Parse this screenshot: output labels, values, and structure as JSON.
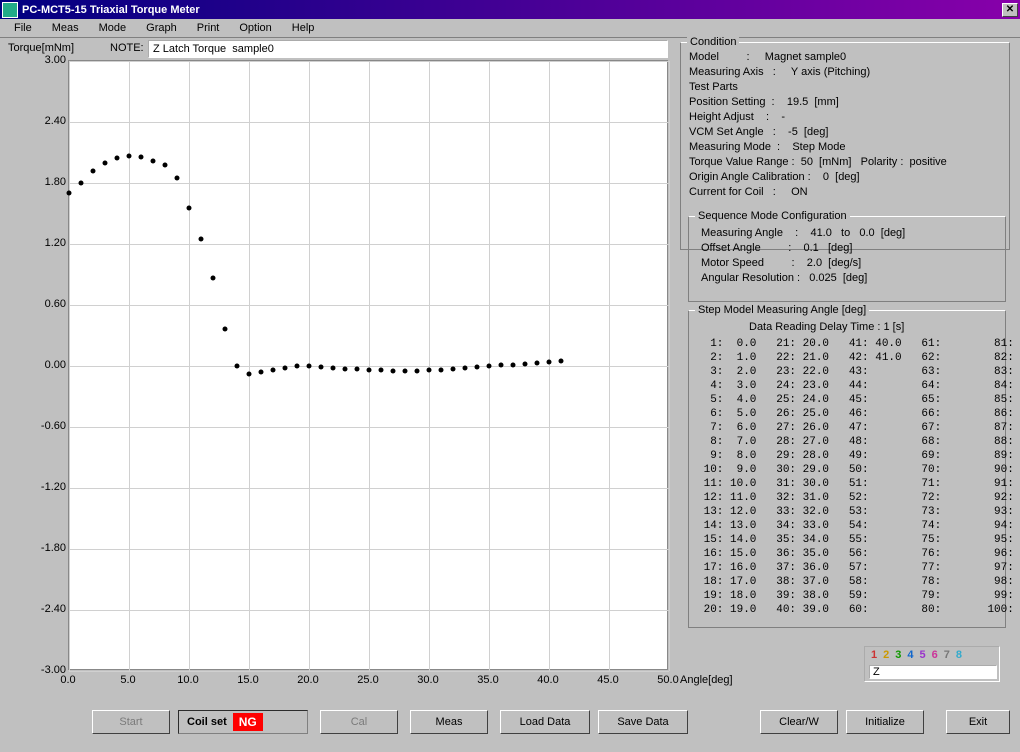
{
  "window": {
    "title": "PC-MCT5-15   Triaxial Torque Meter"
  },
  "menu": [
    "File",
    "Meas",
    "Mode",
    "Graph",
    "Print",
    "Option",
    "Help"
  ],
  "torque_label": "Torque[mNm]",
  "note_label": "NOTE:",
  "note_value": "Z Latch Torque  sample0",
  "chart": {
    "type": "scatter",
    "xlabel": "Angle[deg]",
    "xlim": [
      0,
      50
    ],
    "ylim": [
      -3.0,
      3.0
    ],
    "xtick_step": 5.0,
    "ytick_step": 0.6,
    "xticks": [
      "0.0",
      "5.0",
      "10.0",
      "15.0",
      "20.0",
      "25.0",
      "30.0",
      "35.0",
      "40.0",
      "45.0",
      "50.0"
    ],
    "yticks": [
      "-3.00",
      "-2.40",
      "-1.80",
      "-1.20",
      "-0.60",
      "0.00",
      "0.60",
      "1.20",
      "1.80",
      "2.40",
      "3.00"
    ],
    "grid_color": "#d0d0d0",
    "background_color": "#ffffff",
    "marker_color": "#000000",
    "marker_size": 5,
    "points": [
      [
        0.0,
        1.7
      ],
      [
        1.0,
        1.8
      ],
      [
        2.0,
        1.92
      ],
      [
        3.0,
        2.0
      ],
      [
        4.0,
        2.05
      ],
      [
        5.0,
        2.07
      ],
      [
        6.0,
        2.06
      ],
      [
        7.0,
        2.02
      ],
      [
        8.0,
        1.98
      ],
      [
        9.0,
        1.85
      ],
      [
        10.0,
        1.55
      ],
      [
        11.0,
        1.25
      ],
      [
        12.0,
        0.87
      ],
      [
        13.0,
        0.36
      ],
      [
        14.0,
        0.0
      ],
      [
        15.0,
        -0.08
      ],
      [
        16.0,
        -0.06
      ],
      [
        17.0,
        -0.04
      ],
      [
        18.0,
        -0.02
      ],
      [
        19.0,
        0.0
      ],
      [
        20.0,
        0.0
      ],
      [
        21.0,
        -0.01
      ],
      [
        22.0,
        -0.02
      ],
      [
        23.0,
        -0.03
      ],
      [
        24.0,
        -0.03
      ],
      [
        25.0,
        -0.04
      ],
      [
        26.0,
        -0.04
      ],
      [
        27.0,
        -0.05
      ],
      [
        28.0,
        -0.05
      ],
      [
        29.0,
        -0.05
      ],
      [
        30.0,
        -0.04
      ],
      [
        31.0,
        -0.04
      ],
      [
        32.0,
        -0.03
      ],
      [
        33.0,
        -0.02
      ],
      [
        34.0,
        -0.01
      ],
      [
        35.0,
        0.0
      ],
      [
        36.0,
        0.01
      ],
      [
        37.0,
        0.01
      ],
      [
        38.0,
        0.02
      ],
      [
        39.0,
        0.03
      ],
      [
        40.0,
        0.04
      ],
      [
        41.0,
        0.05
      ]
    ]
  },
  "condition": {
    "title": "Condition",
    "lines": [
      "Model         :     Magnet sample0",
      "Measuring Axis   :     Y axis (Pitching)",
      "Test Parts",
      "Position Setting  :    19.5  [mm]",
      "Height Adjust    :    -",
      "VCM Set Angle   :    -5  [deg]",
      "Measuring Mode  :    Step Mode",
      "Torque Value Range :  50  [mNm]   Polarity :  positive",
      "Origin Angle Calibration :    0  [deg]",
      "Current for Coil   :     ON"
    ]
  },
  "sequence": {
    "title": "Sequence Mode Configuration",
    "lines": [
      "Measuring Angle    :    41.0   to   0.0  [deg]",
      "Offset Angle         :    0.1   [deg]",
      "Motor Speed         :    2.0  [deg/s]",
      "Angular Resolution :   0.025  [deg]"
    ]
  },
  "step": {
    "title": "Step Model Measuring Angle  [deg]",
    "header": "Data Reading Delay Time :  1 [s]",
    "rows": [
      [
        1,
        "0.0",
        21,
        "20.0",
        41,
        "40.0",
        61,
        "",
        81,
        ""
      ],
      [
        2,
        "1.0",
        22,
        "21.0",
        42,
        "41.0",
        62,
        "",
        82,
        ""
      ],
      [
        3,
        "2.0",
        23,
        "22.0",
        43,
        "",
        63,
        "",
        83,
        ""
      ],
      [
        4,
        "3.0",
        24,
        "23.0",
        44,
        "",
        64,
        "",
        84,
        ""
      ],
      [
        5,
        "4.0",
        25,
        "24.0",
        45,
        "",
        65,
        "",
        85,
        ""
      ],
      [
        6,
        "5.0",
        26,
        "25.0",
        46,
        "",
        66,
        "",
        86,
        ""
      ],
      [
        7,
        "6.0",
        27,
        "26.0",
        47,
        "",
        67,
        "",
        87,
        ""
      ],
      [
        8,
        "7.0",
        28,
        "27.0",
        48,
        "",
        68,
        "",
        88,
        ""
      ],
      [
        9,
        "8.0",
        29,
        "28.0",
        49,
        "",
        69,
        "",
        89,
        ""
      ],
      [
        10,
        "9.0",
        30,
        "29.0",
        50,
        "",
        70,
        "",
        90,
        ""
      ],
      [
        11,
        "10.0",
        31,
        "30.0",
        51,
        "",
        71,
        "",
        91,
        ""
      ],
      [
        12,
        "11.0",
        32,
        "31.0",
        52,
        "",
        72,
        "",
        92,
        ""
      ],
      [
        13,
        "12.0",
        33,
        "32.0",
        53,
        "",
        73,
        "",
        93,
        ""
      ],
      [
        14,
        "13.0",
        34,
        "33.0",
        54,
        "",
        74,
        "",
        94,
        ""
      ],
      [
        15,
        "14.0",
        35,
        "34.0",
        55,
        "",
        75,
        "",
        95,
        ""
      ],
      [
        16,
        "15.0",
        36,
        "35.0",
        56,
        "",
        76,
        "",
        96,
        ""
      ],
      [
        17,
        "16.0",
        37,
        "36.0",
        57,
        "",
        77,
        "",
        97,
        ""
      ],
      [
        18,
        "17.0",
        38,
        "37.0",
        58,
        "",
        78,
        "",
        98,
        ""
      ],
      [
        19,
        "18.0",
        39,
        "38.0",
        59,
        "",
        79,
        "",
        99,
        ""
      ],
      [
        20,
        "19.0",
        40,
        "39.0",
        60,
        "",
        80,
        "",
        100,
        ""
      ]
    ]
  },
  "indicator": {
    "digits": [
      "1",
      "2",
      "3",
      "4",
      "5",
      "6",
      "7",
      "8"
    ],
    "colors": [
      "#cc3333",
      "#cc9900",
      "#119900",
      "#1166cc",
      "#9933cc",
      "#cc3399",
      "#777777",
      "#33aacc"
    ],
    "selected": "Z"
  },
  "buttons": {
    "start": "Start",
    "coil_label": "Coil set",
    "coil_status": "NG",
    "cal": "Cal",
    "meas": "Meas",
    "load": "Load Data",
    "save": "Save Data",
    "clear": "Clear/W",
    "init": "Initialize",
    "exit": "Exit"
  }
}
